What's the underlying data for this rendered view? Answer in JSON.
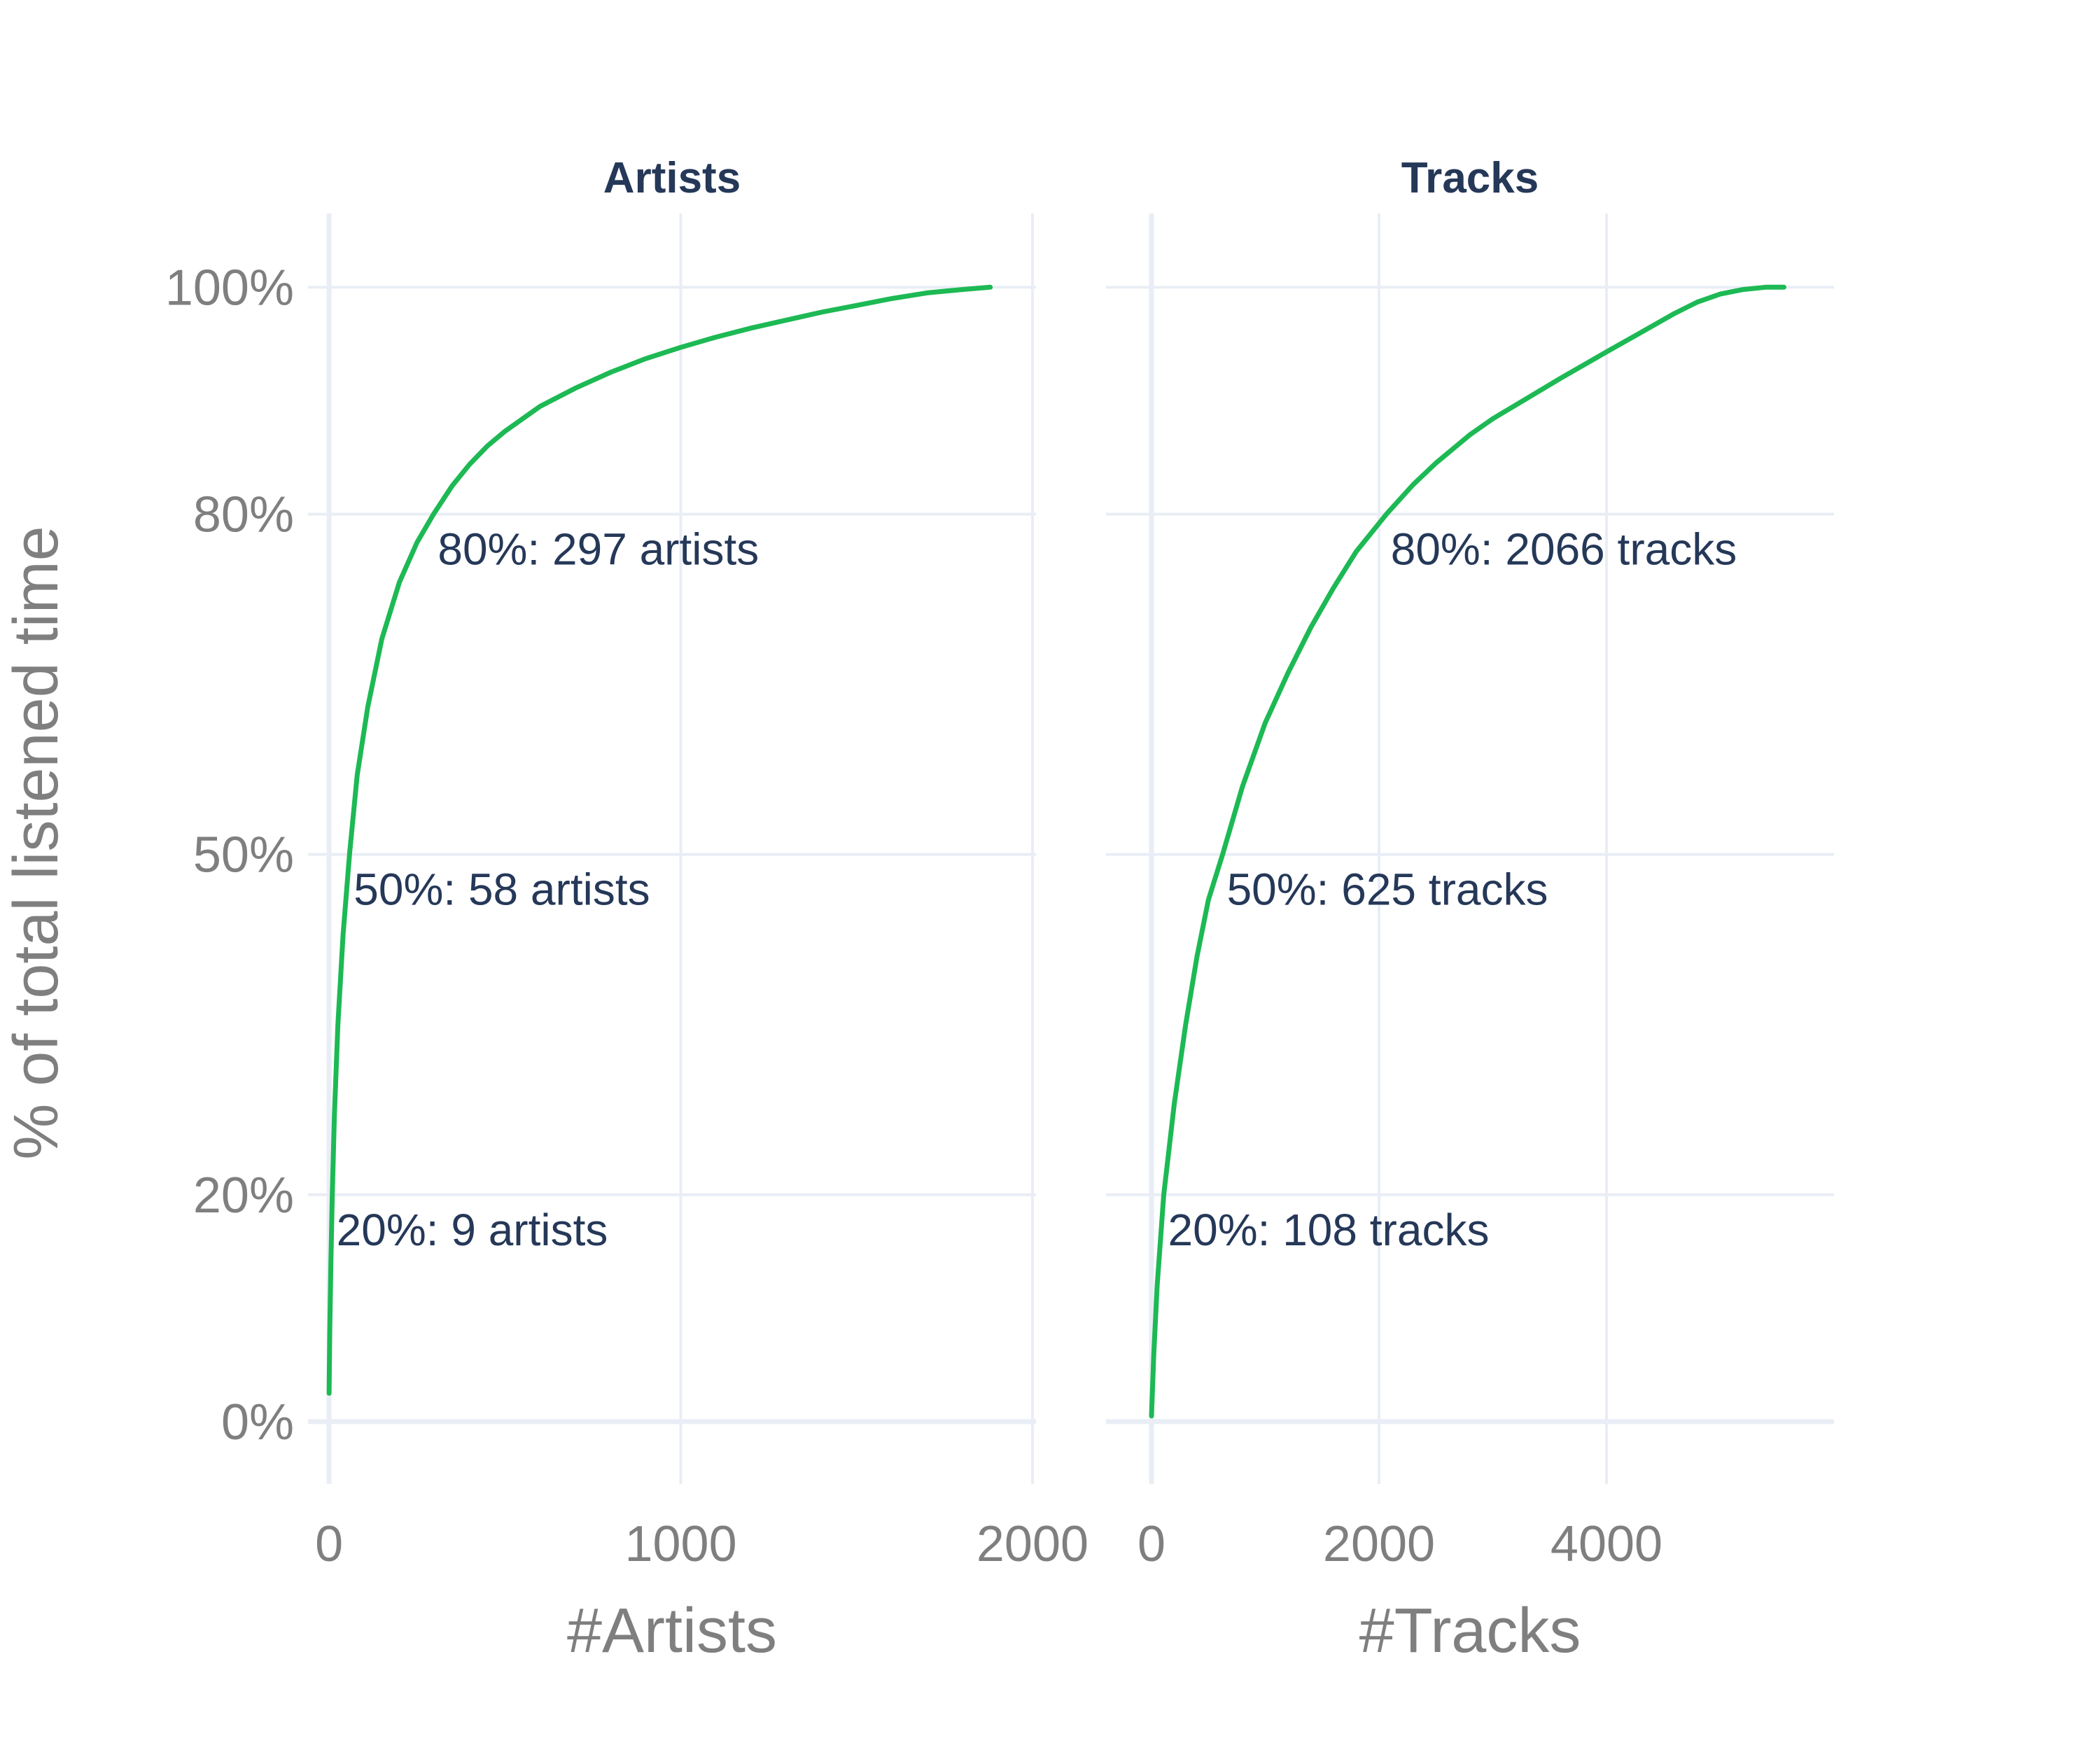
{
  "colors": {
    "line": "#1db954",
    "title": "#253858",
    "annotation": "#253858",
    "tick": "#7f7f7f",
    "grid": "#e9edf5"
  },
  "y_axis_title": "% of total listened time",
  "chart_data": [
    {
      "type": "line",
      "title": "Artists",
      "xlabel": "#Artists",
      "ylabel": "% of total listened time",
      "xlim": [
        -60,
        2010
      ],
      "ylim": [
        -0.055,
        1.065
      ],
      "x_ticks": [
        0,
        1000,
        2000
      ],
      "x_tick_labels": [
        "0",
        "1000",
        "2000"
      ],
      "y_ticks": [
        0,
        0.2,
        0.5,
        0.8,
        1.0
      ],
      "y_tick_labels": [
        "0%",
        "20%",
        "50%",
        "80%",
        "100%"
      ],
      "grid": true,
      "series": [
        {
          "x": [
            0,
            2,
            5,
            9,
            15,
            25,
            40,
            58,
            80,
            110,
            150,
            200,
            250,
            297,
            350,
            400,
            450,
            500,
            600,
            700,
            800,
            900,
            1000,
            1100,
            1200,
            1300,
            1400,
            1500,
            1600,
            1700,
            1800,
            1880
          ],
          "y": [
            0.025,
            0.08,
            0.14,
            0.2,
            0.27,
            0.35,
            0.43,
            0.5,
            0.57,
            0.63,
            0.69,
            0.74,
            0.775,
            0.8,
            0.825,
            0.844,
            0.86,
            0.873,
            0.895,
            0.911,
            0.925,
            0.937,
            0.947,
            0.956,
            0.964,
            0.971,
            0.978,
            0.984,
            0.99,
            0.995,
            0.998,
            1.0
          ]
        }
      ],
      "annotations": [
        {
          "x": 297,
          "y": 0.8,
          "text": "80%: 297 artists"
        },
        {
          "x": 58,
          "y": 0.5,
          "text": "50%: 58 artists"
        },
        {
          "x": 9,
          "y": 0.2,
          "text": "20%: 9 artists"
        }
      ]
    },
    {
      "type": "line",
      "title": "Tracks",
      "xlabel": "#Tracks",
      "ylabel": "",
      "xlim": [
        -400,
        6000
      ],
      "ylim": [
        -0.055,
        1.065
      ],
      "x_ticks": [
        0,
        2000,
        4000
      ],
      "x_tick_labels": [
        "0",
        "2000",
        "4000"
      ],
      "y_ticks": [
        0,
        0.2,
        0.5,
        0.8,
        1.0
      ],
      "y_tick_labels": [
        "",
        "",
        "",
        "",
        ""
      ],
      "grid": true,
      "series": [
        {
          "x": [
            0,
            20,
            50,
            108,
            200,
            300,
            400,
            500,
            625,
            800,
            1000,
            1200,
            1400,
            1600,
            1800,
            2066,
            2300,
            2500,
            2800,
            3000,
            3300,
            3600,
            4000,
            4300,
            4600,
            4800,
            5000,
            5200,
            5400,
            5560
          ],
          "y": [
            0.005,
            0.06,
            0.12,
            0.2,
            0.28,
            0.35,
            0.41,
            0.46,
            0.5,
            0.56,
            0.616,
            0.66,
            0.7,
            0.735,
            0.767,
            0.8,
            0.826,
            0.845,
            0.87,
            0.884,
            0.902,
            0.92,
            0.943,
            0.96,
            0.977,
            0.987,
            0.994,
            0.998,
            1.0,
            1.0
          ]
        }
      ],
      "annotations": [
        {
          "x": 2066,
          "y": 0.8,
          "text": "80%: 2066 tracks"
        },
        {
          "x": 625,
          "y": 0.5,
          "text": "50%: 625 tracks"
        },
        {
          "x": 108,
          "y": 0.2,
          "text": "20%: 108 tracks"
        }
      ]
    }
  ]
}
